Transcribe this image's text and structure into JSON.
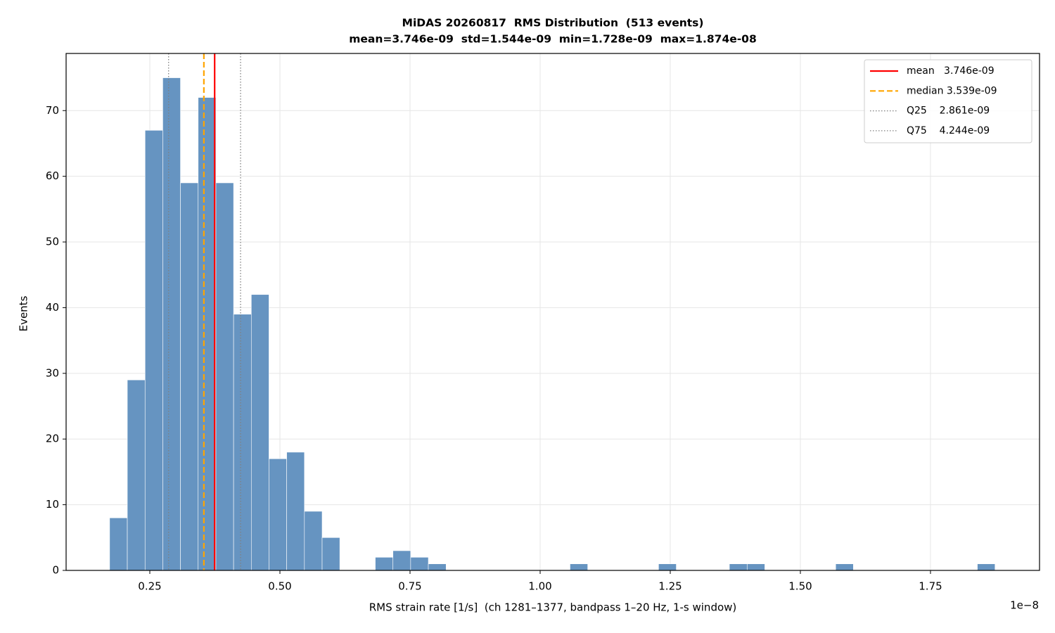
{
  "chart_data": {
    "type": "histogram",
    "title": "MiDAS 20260817  RMS Distribution  (513 events)",
    "subtitle": "mean=3.746e-09  std=1.544e-09  min=1.728e-09  max=1.874e-08",
    "x_label": "RMS strain rate [1/s]  (ch 1281–1377, bandpass 1–20 Hz, 1-s window)",
    "y_label": "Events",
    "x_offset_label": "1e−8",
    "bins": [
      0.1728,
      0.2068,
      0.2409,
      0.2749,
      0.3089,
      0.3429,
      0.377,
      0.411,
      0.445,
      0.479,
      0.513,
      0.5471,
      0.5811,
      0.6151,
      0.6491,
      0.6832,
      0.7172,
      0.7512,
      0.7852,
      0.8193,
      0.8533,
      0.8873,
      0.9213,
      0.9554,
      0.9894,
      1.0234,
      1.0574,
      1.0914,
      1.1255,
      1.1595,
      1.1935,
      1.2275,
      1.2616,
      1.2956,
      1.3296,
      1.3636,
      1.3977,
      1.4317,
      1.4657,
      1.4997,
      1.5338,
      1.5678,
      1.6018,
      1.6358,
      1.6698,
      1.7039,
      1.7379,
      1.7719,
      1.8059,
      1.84,
      1.874
    ],
    "values": [
      8,
      29,
      67,
      75,
      59,
      72,
      59,
      39,
      42,
      17,
      18,
      9,
      5,
      0,
      0,
      2,
      3,
      2,
      1,
      0,
      0,
      0,
      0,
      0,
      0,
      0,
      1,
      0,
      0,
      0,
      0,
      1,
      0,
      0,
      0,
      1,
      1,
      0,
      0,
      0,
      0,
      1,
      0,
      0,
      0,
      0,
      0,
      0,
      0,
      1
    ],
    "color": "#6694c1",
    "edgecolor": "#ffffff",
    "reference_lines": [
      {
        "name": "mean   3.746e-09",
        "value": 0.3746,
        "color": "#ff0000",
        "style": "solid"
      },
      {
        "name": "median 3.539e-09",
        "value": 0.3539,
        "color": "#ffa500",
        "style": "dashed"
      },
      {
        "name": "Q25    2.861e-09",
        "value": 0.2861,
        "color": "#808080",
        "style": "dotted"
      },
      {
        "name": "Q75    4.244e-09",
        "value": 0.4244,
        "color": "#808080",
        "style": "dotted"
      }
    ],
    "xlim": [
      0.0892,
      1.9595
    ],
    "ylim": [
      0,
      78.7
    ],
    "xticks": [
      0.25,
      {
        "value": 0.5,
        "label": "0.50"
      },
      0.75,
      {
        "value": 1,
        "label": "1.00"
      },
      1.25,
      {
        "value": 1.5,
        "label": "1.50"
      },
      1.75
    ],
    "yticks": [
      0,
      10,
      20,
      30,
      40,
      50,
      60,
      70
    ],
    "grid": true,
    "legend": "upper right"
  }
}
